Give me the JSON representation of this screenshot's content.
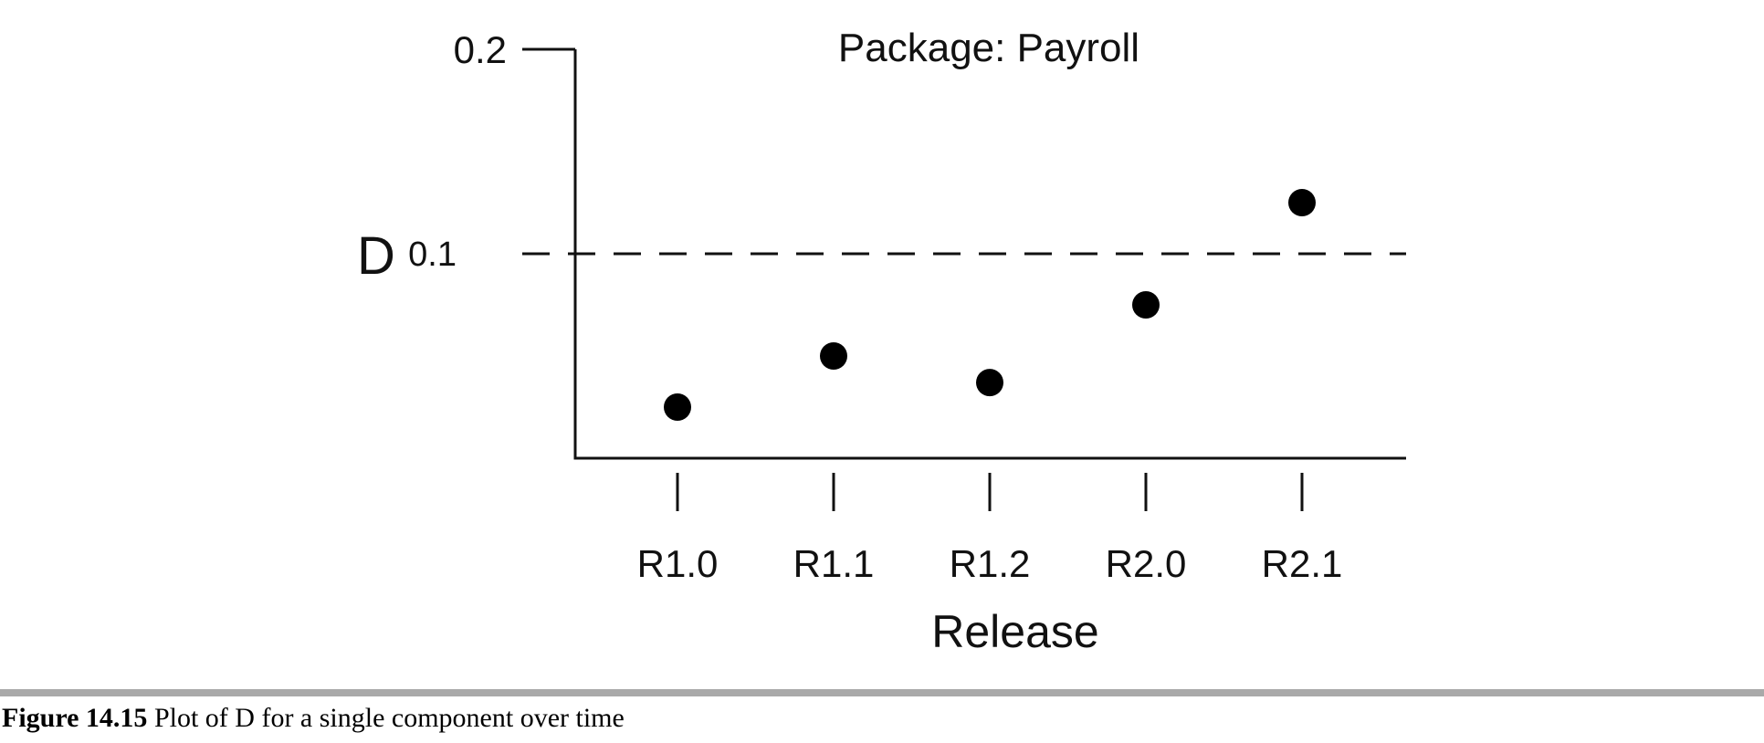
{
  "chart_data": {
    "type": "scatter",
    "title": "Package: Payroll",
    "xlabel": "Release",
    "ylabel": "D",
    "categories": [
      "R1.0",
      "R1.1",
      "R1.2",
      "R2.0",
      "R2.1"
    ],
    "values": [
      0.025,
      0.05,
      0.037,
      0.075,
      0.125
    ],
    "ylim": [
      0,
      0.2
    ],
    "yticks": [
      "0.1",
      "0.2"
    ],
    "ytick_values": [
      0.1,
      0.2
    ],
    "reference_line": 0.1,
    "grid": false,
    "legend": "none",
    "colors": {
      "marker": "#000000",
      "axis": "#111111"
    }
  },
  "caption": {
    "figure_number": "Figure 14.15",
    "text": "Plot of D for a single component over time"
  }
}
